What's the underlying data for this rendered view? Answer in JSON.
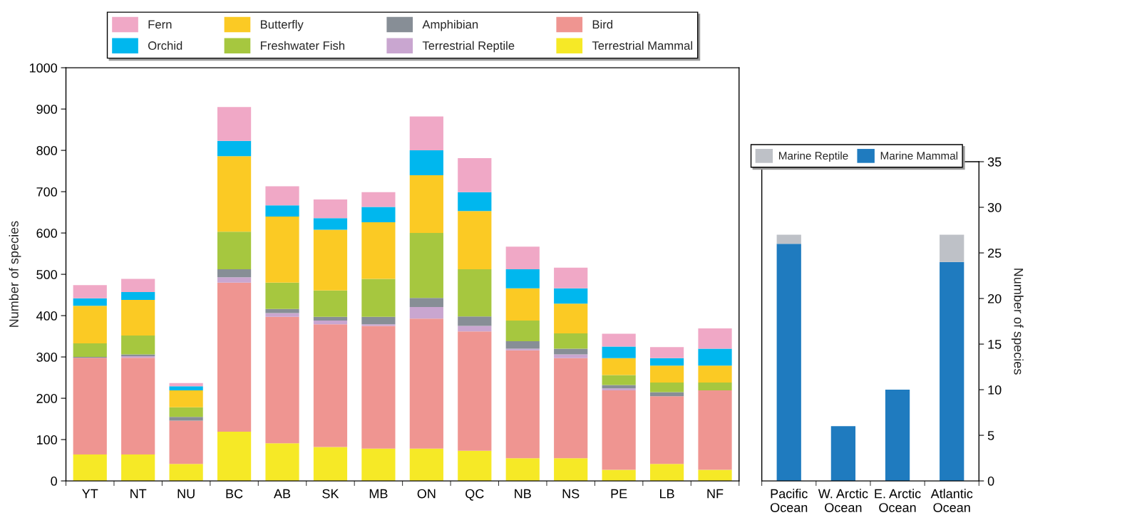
{
  "chart_data": [
    {
      "type": "bar",
      "stacked": true,
      "ylabel": "Number of species",
      "categories": [
        "YT",
        "NT",
        "NU",
        "BC",
        "AB",
        "SK",
        "MB",
        "ON",
        "QC",
        "NB",
        "NS",
        "PE",
        "LB",
        "NF"
      ],
      "ylim": [
        0,
        1000
      ],
      "yticks": [
        0,
        100,
        200,
        300,
        400,
        500,
        600,
        700,
        800,
        900,
        1000
      ],
      "grid": false,
      "legend": "top",
      "series": [
        {
          "name": "Terrestrial Mammal",
          "color": "#f6e926",
          "values": [
            64,
            64,
            41,
            119,
            91,
            82,
            78,
            78,
            73,
            55,
            55,
            27,
            41,
            27
          ]
        },
        {
          "name": "Bird",
          "color": "#ef9591",
          "values": [
            234,
            234,
            105,
            361,
            306,
            297,
            297,
            315,
            289,
            261,
            242,
            192,
            164,
            192
          ]
        },
        {
          "name": "Terrestrial Reptile",
          "color": "#c9a6d0",
          "values": [
            null,
            4,
            0,
            13,
            9,
            9,
            4,
            28,
            13,
            4,
            9,
            5,
            0,
            0
          ]
        },
        {
          "name": "Amphibian",
          "color": "#878e96",
          "values": [
            2,
            4,
            9,
            19,
            10,
            9,
            18,
            22,
            23,
            18,
            14,
            8,
            10,
            0
          ]
        },
        {
          "name": "Freshwater Fish",
          "color": "#a6c73f",
          "values": [
            33,
            46,
            23,
            91,
            64,
            64,
            92,
            157,
            114,
            50,
            37,
            24,
            23,
            19
          ]
        },
        {
          "name": "Butterfly",
          "color": "#fbca24",
          "values": [
            91,
            86,
            41,
            183,
            160,
            147,
            137,
            140,
            141,
            78,
            72,
            41,
            41,
            41
          ]
        },
        {
          "name": "Orchid",
          "color": "#00b7ee",
          "values": [
            18,
            19,
            10,
            37,
            27,
            28,
            37,
            60,
            46,
            46,
            37,
            28,
            18,
            41
          ]
        },
        {
          "name": "Fern",
          "color": "#f0a8c6",
          "values": [
            32,
            32,
            8,
            82,
            46,
            45,
            36,
            82,
            82,
            55,
            50,
            31,
            27,
            49
          ]
        }
      ]
    },
    {
      "type": "bar",
      "stacked": true,
      "ylabel": "Number of species",
      "categories": [
        "Pacific\nOcean",
        "W. Arctic\nOcean",
        "E. Arctic\nOcean",
        "Atlantic\nOcean"
      ],
      "ylim": [
        0,
        35
      ],
      "yticks": [
        0,
        5,
        10,
        15,
        20,
        25,
        30,
        35
      ],
      "grid": false,
      "legend": "top",
      "series": [
        {
          "name": "Marine Mammal",
          "color": "#1f7bbf",
          "values": [
            26,
            6,
            10,
            24
          ]
        },
        {
          "name": "Marine Reptile",
          "color": "#bec1c7",
          "values": [
            1,
            0,
            0,
            3
          ]
        }
      ]
    }
  ]
}
